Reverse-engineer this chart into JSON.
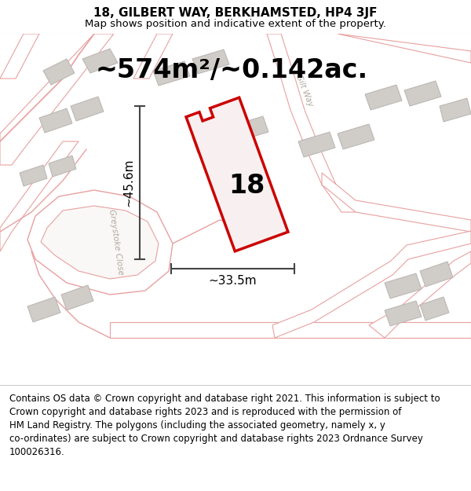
{
  "title": "18, GILBERT WAY, BERKHAMSTED, HP4 3JF",
  "subtitle": "Map shows position and indicative extent of the property.",
  "area_label": "~574m²/~0.142ac.",
  "property_number": "18",
  "dim_width": "~33.5m",
  "dim_height": "~45.6m",
  "footer": "Contains OS data © Crown copyright and database right 2021. This information is subject to\nCrown copyright and database rights 2023 and is reproduced with the permission of\nHM Land Registry. The polygons (including the associated geometry, namely x, y\nco-ordinates) are subject to Crown copyright and database rights 2023 Ordnance Survey\n100026316.",
  "bg_color": "#faf8f6",
  "road_color": "#e8a0a0",
  "building_color": "#d0ccc8",
  "building_edge": "#b8b4b0",
  "plot_color": "#cc0000",
  "plot_fill": "#f8f0f0",
  "dim_color": "#444444",
  "street_color": "#b0a8a0",
  "title_fontsize": 11,
  "subtitle_fontsize": 9.5,
  "area_fontsize": 24,
  "number_fontsize": 24,
  "dim_fontsize": 11,
  "footer_fontsize": 8.5
}
